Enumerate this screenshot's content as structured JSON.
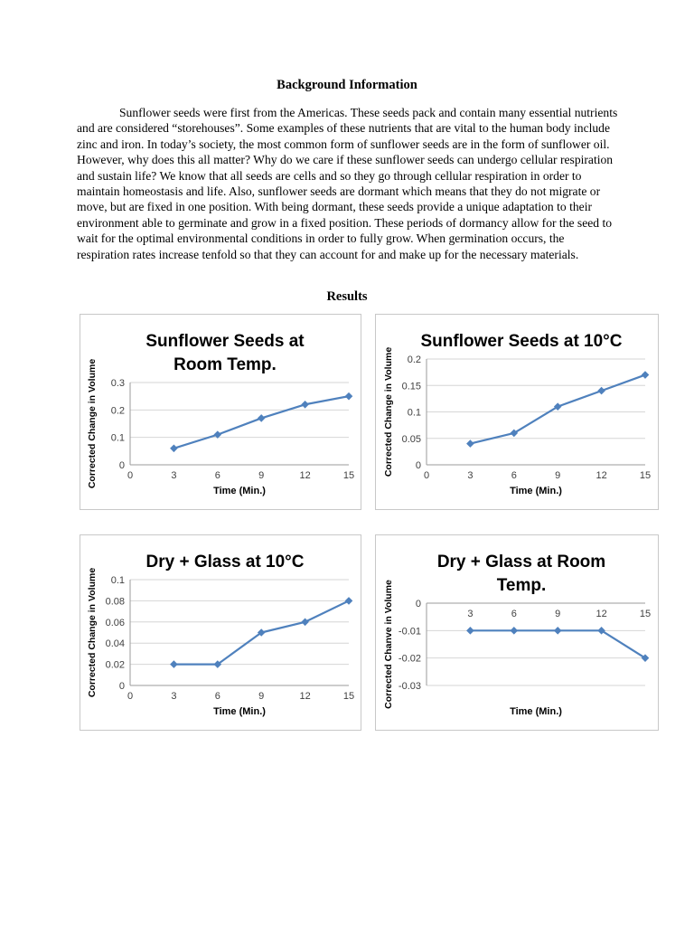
{
  "document": {
    "background_heading": "Background Information",
    "paragraph": "Sunflower seeds were first from the Americas. These seeds pack and contain many essential nutrients and are considered “storehouses”. Some examples of these nutrients that are vital to the human body include zinc and iron. In today’s society, the most common form of sunflower seeds are in the form of sunflower oil. However, why does this all matter? Why do we care if these sunflower seeds can undergo cellular respiration and sustain life? We know that all seeds are cells and so they go through cellular respiration in order to maintain homeostasis and life. Also, sunflower seeds are dormant which means that they do not migrate or move, but are fixed in one position. With being dormant, these seeds provide a unique adaptation to their environment able to germinate and grow in a fixed position. These periods of dormancy allow for the seed to wait for the optimal environmental conditions in order to fully grow. When germination occurs, the respiration rates increase tenfold so that they can account for and make up for the necessary materials.",
    "results_heading": "Results"
  },
  "chart_style": {
    "line_color": "#4F81BD",
    "grid_color": "#D6D6D6",
    "axis_color": "#9B9B9B",
    "tick_label_color": "#3F3F3F",
    "title_color": "#000000",
    "border_color": "#C8C8C8"
  },
  "chart_data": [
    {
      "type": "line",
      "title": "Sunflower Seeds at Room Temp.",
      "title_lines": [
        "Sunflower Seeds at",
        "Room Temp."
      ],
      "xlabel": "Time (Min.)",
      "ylabel": "Corrected Change in Volume",
      "x": [
        3,
        6,
        9,
        12,
        15
      ],
      "values": [
        0.06,
        0.11,
        0.17,
        0.22,
        0.25
      ],
      "xticks": [
        0,
        3,
        6,
        9,
        12,
        15
      ],
      "yticks": [
        0,
        0.1,
        0.2,
        0.3
      ],
      "xlim": [
        0,
        15
      ],
      "ylim": [
        0,
        0.3
      ],
      "marker": "diamond",
      "grid": true,
      "legend": "none"
    },
    {
      "type": "line",
      "title": "Sunflower Seeds at 10°C",
      "title_lines": [
        "Sunflower Seeds at 10°C"
      ],
      "xlabel": "Time (Min.)",
      "ylabel": "Corrected Change in Volume",
      "x": [
        3,
        6,
        9,
        12,
        15
      ],
      "values": [
        0.04,
        0.06,
        0.11,
        0.14,
        0.17
      ],
      "xticks": [
        0,
        3,
        6,
        9,
        12,
        15
      ],
      "yticks": [
        0,
        0.05,
        0.1,
        0.15,
        0.2
      ],
      "xlim": [
        0,
        15
      ],
      "ylim": [
        0,
        0.2
      ],
      "marker": "diamond",
      "grid": true,
      "legend": "none"
    },
    {
      "type": "line",
      "title": "Dry + Glass at 10°C",
      "title_lines": [
        "Dry + Glass at 10°C"
      ],
      "xlabel": "Time (Min.)",
      "ylabel": "Corrected Change in Volume",
      "x": [
        3,
        6,
        9,
        12,
        15
      ],
      "values": [
        0.02,
        0.02,
        0.05,
        0.06,
        0.08
      ],
      "xticks": [
        0,
        3,
        6,
        9,
        12,
        15
      ],
      "yticks": [
        0,
        0.02,
        0.04,
        0.06,
        0.08,
        0.1
      ],
      "xlim": [
        0,
        15
      ],
      "ylim": [
        0,
        0.1
      ],
      "marker": "diamond",
      "grid": true,
      "legend": "none"
    },
    {
      "type": "line",
      "title": "Dry + Glass at Room Temp.",
      "title_lines": [
        "Dry + Glass at Room",
        "Temp."
      ],
      "xlabel": "Time (Min.)",
      "ylabel": "Corrected Chanve in Volume",
      "x": [
        3,
        6,
        9,
        12,
        15
      ],
      "values": [
        -0.01,
        -0.01,
        -0.01,
        -0.01,
        -0.02
      ],
      "xticks": [
        3,
        6,
        9,
        12,
        15
      ],
      "yticks": [
        0,
        -0.01,
        -0.02,
        -0.03
      ],
      "xlim": [
        0,
        15
      ],
      "ylim": [
        -0.03,
        0
      ],
      "marker": "diamond",
      "grid": true,
      "legend": "none"
    }
  ]
}
